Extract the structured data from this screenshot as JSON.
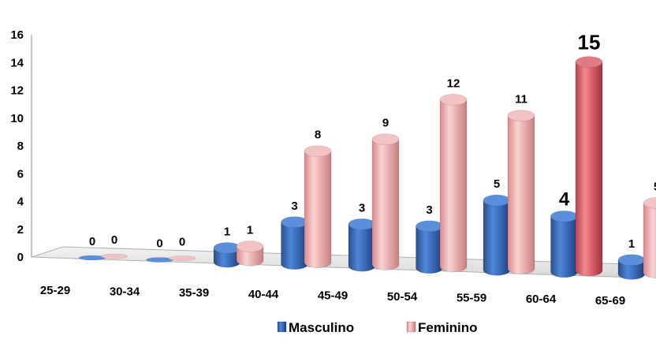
{
  "chart_data": {
    "type": "bar",
    "title": "",
    "xlabel": "",
    "ylabel": "",
    "ylim": [
      0,
      16
    ],
    "yticks": [
      0,
      2,
      4,
      6,
      8,
      10,
      12,
      14,
      16
    ],
    "grid": false,
    "legend_position": "bottom",
    "categories": [
      "25-29",
      "30-34",
      "35-39",
      "40-44",
      "45-49",
      "50-54",
      "55-59",
      "60-64",
      "65-69"
    ],
    "series": [
      {
        "name": "Masculino",
        "color": "#3d6fc0",
        "values": [
          0,
          0,
          1,
          3,
          3,
          3,
          5,
          4,
          1
        ]
      },
      {
        "name": "Feminino",
        "color": "#e8a4a4",
        "values": [
          0,
          0,
          1,
          8,
          9,
          12,
          11,
          15,
          5
        ]
      }
    ],
    "highlight": {
      "category": "60-64",
      "feminino_color": "#d9626e"
    }
  }
}
